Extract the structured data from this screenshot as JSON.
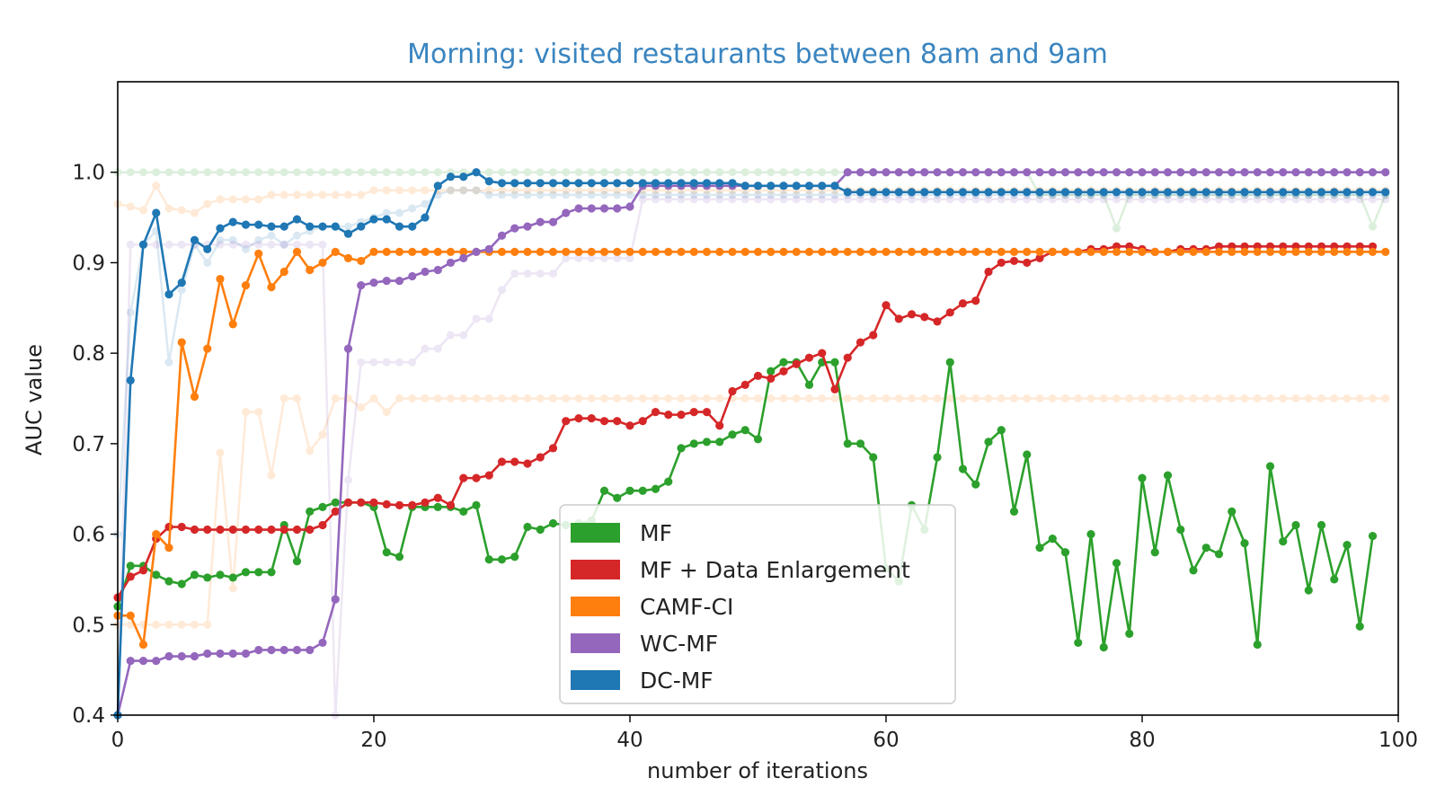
{
  "chart_data": {
    "type": "line",
    "title": "Morning: visited restaurants between 8am and 9am",
    "title_color": "#3a85c0",
    "xlabel": "number of iterations",
    "ylabel": "AUC value",
    "xlim": [
      0,
      100
    ],
    "ylim": [
      0.4,
      1.1
    ],
    "xticks": [
      0,
      20,
      40,
      60,
      80,
      100
    ],
    "xtick_labels": [
      "0",
      "20",
      "40",
      "60",
      "80",
      "100"
    ],
    "yticks": [
      0.4,
      0.5,
      0.6,
      0.7,
      0.8,
      0.9,
      1.0
    ],
    "ytick_labels": [
      "0.4",
      "0.5",
      "0.6",
      "0.7",
      "0.8",
      "0.9",
      "1.0"
    ],
    "legend_position": "lower-center",
    "series": [
      {
        "name": "MF",
        "color": "#2ca02c",
        "values": [
          0.52,
          0.565,
          0.565,
          0.555,
          0.548,
          0.545,
          0.555,
          0.552,
          0.555,
          0.552,
          0.558,
          0.558,
          0.558,
          0.61,
          0.57,
          0.625,
          0.63,
          0.635,
          0.635,
          0.635,
          0.63,
          0.58,
          0.575,
          0.63,
          0.63,
          0.63,
          0.63,
          0.625,
          0.632,
          0.572,
          0.572,
          0.575,
          0.608,
          0.605,
          0.612,
          0.61,
          0.612,
          0.615,
          0.648,
          0.64,
          0.648,
          0.648,
          0.65,
          0.658,
          0.695,
          0.7,
          0.702,
          0.702,
          0.71,
          0.715,
          0.705,
          0.78,
          0.79,
          0.79,
          0.765,
          0.79,
          0.79,
          0.7,
          0.7,
          0.685,
          0.562,
          0.548,
          0.632,
          0.605,
          0.685,
          0.79,
          0.672,
          0.655,
          0.702,
          0.715,
          0.625,
          0.688,
          0.585,
          0.595,
          0.58,
          0.48,
          0.6,
          0.475,
          0.568,
          0.49,
          0.662,
          0.58,
          0.665,
          0.605,
          0.56,
          0.585,
          0.578,
          0.625,
          0.59,
          0.478,
          0.675,
          0.592,
          0.61,
          0.538,
          0.61,
          0.55,
          0.588,
          0.498,
          0.598
        ]
      },
      {
        "name": "MF + Data Enlargement",
        "color": "#d62728",
        "values": [
          0.53,
          0.553,
          0.56,
          0.595,
          0.608,
          0.608,
          0.605,
          0.605,
          0.605,
          0.605,
          0.605,
          0.605,
          0.605,
          0.605,
          0.605,
          0.605,
          0.61,
          0.625,
          0.635,
          0.635,
          0.635,
          0.633,
          0.632,
          0.632,
          0.635,
          0.64,
          0.632,
          0.662,
          0.662,
          0.665,
          0.68,
          0.68,
          0.678,
          0.685,
          0.695,
          0.725,
          0.728,
          0.728,
          0.725,
          0.725,
          0.72,
          0.725,
          0.735,
          0.732,
          0.732,
          0.735,
          0.735,
          0.72,
          0.758,
          0.765,
          0.775,
          0.772,
          0.78,
          0.788,
          0.795,
          0.8,
          0.76,
          0.795,
          0.812,
          0.82,
          0.853,
          0.838,
          0.843,
          0.84,
          0.835,
          0.845,
          0.855,
          0.858,
          0.89,
          0.9,
          0.902,
          0.9,
          0.905,
          0.912,
          0.912,
          0.912,
          0.915,
          0.915,
          0.918,
          0.918,
          0.915,
          0.912,
          0.912,
          0.915,
          0.915,
          0.915,
          0.918,
          0.918,
          0.918,
          0.918,
          0.918,
          0.918,
          0.918,
          0.918,
          0.918,
          0.918,
          0.918,
          0.918,
          0.918
        ]
      },
      {
        "name": "CAMF-CI",
        "color": "#ff7f0e",
        "values": [
          0.51,
          0.51,
          0.478,
          0.6,
          0.585,
          0.812,
          0.752,
          0.805,
          0.882,
          0.832,
          0.875,
          0.91,
          0.873,
          0.89,
          0.912,
          0.892,
          0.9,
          0.912,
          0.905,
          0.902,
          0.912,
          0.912,
          0.912,
          0.912,
          0.912,
          0.912,
          0.912,
          0.912,
          0.912,
          0.912,
          0.912,
          0.912,
          0.912,
          0.912,
          0.912,
          0.912,
          0.912,
          0.912,
          0.912,
          0.912,
          0.912,
          0.912,
          0.912,
          0.912,
          0.912,
          0.912,
          0.912,
          0.912,
          0.912,
          0.912,
          0.912,
          0.912,
          0.912,
          0.912,
          0.912,
          0.912,
          0.912,
          0.912,
          0.912,
          0.912,
          0.912,
          0.912,
          0.912,
          0.912,
          0.912,
          0.912,
          0.912,
          0.912,
          0.912,
          0.912,
          0.912,
          0.912,
          0.912,
          0.912,
          0.912,
          0.912,
          0.912,
          0.912,
          0.912,
          0.912,
          0.912,
          0.912,
          0.912,
          0.912,
          0.912,
          0.912,
          0.912,
          0.912,
          0.912,
          0.912,
          0.912,
          0.912,
          0.912,
          0.912,
          0.912,
          0.912,
          0.912,
          0.912,
          0.912,
          0.912
        ]
      },
      {
        "name": "WC-MF",
        "color": "#9467bd",
        "values": [
          0.4,
          0.46,
          0.46,
          0.46,
          0.465,
          0.465,
          0.465,
          0.468,
          0.468,
          0.468,
          0.468,
          0.472,
          0.472,
          0.472,
          0.472,
          0.472,
          0.48,
          0.528,
          0.805,
          0.875,
          0.878,
          0.88,
          0.88,
          0.885,
          0.89,
          0.892,
          0.9,
          0.905,
          0.912,
          0.915,
          0.93,
          0.938,
          0.94,
          0.945,
          0.945,
          0.955,
          0.96,
          0.96,
          0.96,
          0.96,
          0.962,
          0.985,
          0.985,
          0.985,
          0.985,
          0.985,
          0.985,
          0.985,
          0.985,
          0.985,
          0.985,
          0.985,
          0.985,
          0.985,
          0.985,
          0.985,
          0.985,
          1.0,
          1.0,
          1.0,
          1.0,
          1.0,
          1.0,
          1.0,
          1.0,
          1.0,
          1.0,
          1.0,
          1.0,
          1.0,
          1.0,
          1.0,
          1.0,
          1.0,
          1.0,
          1.0,
          1.0,
          1.0,
          1.0,
          1.0,
          1.0,
          1.0,
          1.0,
          1.0,
          1.0,
          1.0,
          1.0,
          1.0,
          1.0,
          1.0,
          1.0,
          1.0,
          1.0,
          1.0,
          1.0,
          1.0,
          1.0,
          1.0,
          1.0,
          1.0
        ]
      },
      {
        "name": "DC-MF",
        "color": "#1f77b4",
        "values": [
          0.4,
          0.77,
          0.92,
          0.955,
          0.865,
          0.878,
          0.925,
          0.915,
          0.938,
          0.945,
          0.942,
          0.942,
          0.94,
          0.94,
          0.948,
          0.94,
          0.94,
          0.94,
          0.932,
          0.94,
          0.948,
          0.948,
          0.94,
          0.94,
          0.95,
          0.985,
          0.995,
          0.995,
          1.0,
          0.99,
          0.988,
          0.988,
          0.988,
          0.988,
          0.988,
          0.988,
          0.988,
          0.988,
          0.988,
          0.988,
          0.988,
          0.988,
          0.988,
          0.988,
          0.988,
          0.988,
          0.988,
          0.988,
          0.988,
          0.985,
          0.985,
          0.985,
          0.985,
          0.985,
          0.985,
          0.985,
          0.985,
          0.978,
          0.978,
          0.978,
          0.978,
          0.978,
          0.978,
          0.978,
          0.978,
          0.978,
          0.978,
          0.978,
          0.978,
          0.978,
          0.978,
          0.978,
          0.978,
          0.978,
          0.978,
          0.978,
          0.978,
          0.978,
          0.978,
          0.978,
          0.978,
          0.978,
          0.978,
          0.978,
          0.978,
          0.978,
          0.978,
          0.978,
          0.978,
          0.978,
          0.978,
          0.978,
          0.978,
          0.978,
          0.978,
          0.978,
          0.978,
          0.978,
          0.978,
          0.978
        ]
      }
    ],
    "background_series": [
      {
        "name": "MF-faint",
        "color": "#2ca02c",
        "values": [
          1.0,
          1.0,
          1.0,
          1.0,
          1.0,
          1.0,
          1.0,
          1.0,
          1.0,
          1.0,
          1.0,
          1.0,
          1.0,
          1.0,
          1.0,
          1.0,
          1.0,
          1.0,
          1.0,
          1.0,
          1.0,
          1.0,
          1.0,
          1.0,
          1.0,
          1.0,
          1.0,
          1.0,
          1.0,
          1.0,
          1.0,
          1.0,
          1.0,
          1.0,
          1.0,
          1.0,
          1.0,
          1.0,
          1.0,
          1.0,
          1.0,
          1.0,
          1.0,
          1.0,
          1.0,
          1.0,
          1.0,
          1.0,
          1.0,
          1.0,
          1.0,
          1.0,
          1.0,
          1.0,
          1.0,
          1.0,
          1.0,
          1.0,
          1.0,
          1.0,
          1.0,
          1.0,
          1.0,
          1.0,
          1.0,
          1.0,
          1.0,
          1.0,
          1.0,
          1.0,
          1.0,
          1.0,
          0.975,
          0.975,
          0.975,
          0.975,
          0.975,
          0.975,
          0.938,
          0.975,
          0.975,
          0.975,
          0.975,
          0.975,
          0.975,
          0.975,
          0.975,
          0.975,
          0.975,
          0.975,
          0.975,
          0.975,
          0.975,
          0.975,
          0.975,
          0.975,
          0.975,
          0.975,
          0.94,
          0.975
        ]
      },
      {
        "name": "CAMF-CI-faint-top",
        "color": "#ff7f0e",
        "values": [
          0.965,
          0.962,
          0.958,
          0.985,
          0.96,
          0.958,
          0.955,
          0.965,
          0.97,
          0.97,
          0.97,
          0.97,
          0.975,
          0.975,
          0.975,
          0.975,
          0.975,
          0.975,
          0.975,
          0.975,
          0.98,
          0.98,
          0.98,
          0.98,
          0.98,
          0.98,
          0.98,
          0.98,
          0.98,
          0.98,
          0.98,
          0.98,
          0.98,
          0.98,
          0.98,
          0.98,
          0.98,
          0.98,
          0.98,
          0.98,
          0.98,
          0.98,
          0.98,
          0.98,
          0.98,
          0.98,
          0.98,
          0.98,
          0.98,
          0.98,
          0.98,
          0.98,
          0.98,
          0.98,
          0.98,
          0.98,
          0.98,
          0.98,
          0.98,
          0.98,
          0.98,
          0.98,
          0.98,
          0.98,
          0.98,
          0.98,
          0.98,
          0.98,
          0.98,
          0.98,
          0.98,
          0.98,
          0.98,
          0.98,
          0.98,
          0.98,
          0.98,
          0.98,
          0.98,
          0.98,
          0.98,
          0.98,
          0.98,
          0.98,
          0.98,
          0.98,
          0.98,
          0.98,
          0.98,
          0.98,
          0.98,
          0.98,
          0.98,
          0.98,
          0.98,
          0.98,
          0.98,
          0.98,
          0.98,
          0.98
        ]
      },
      {
        "name": "CAMF-CI-faint-mid",
        "color": "#ff7f0e",
        "values": [
          0.5,
          0.5,
          0.5,
          0.5,
          0.5,
          0.5,
          0.5,
          0.5,
          0.69,
          0.54,
          0.735,
          0.735,
          0.665,
          0.75,
          0.75,
          0.692,
          0.71,
          0.75,
          0.75,
          0.74,
          0.75,
          0.735,
          0.75,
          0.75,
          0.75,
          0.75,
          0.75,
          0.75,
          0.75,
          0.75,
          0.75,
          0.75,
          0.75,
          0.75,
          0.75,
          0.75,
          0.75,
          0.75,
          0.75,
          0.75,
          0.75,
          0.75,
          0.75,
          0.75,
          0.75,
          0.75,
          0.75,
          0.75,
          0.75,
          0.75,
          0.75,
          0.75,
          0.75,
          0.75,
          0.75,
          0.75,
          0.75,
          0.75,
          0.75,
          0.75,
          0.75,
          0.75,
          0.75,
          0.75,
          0.75,
          0.75,
          0.75,
          0.75,
          0.75,
          0.75,
          0.75,
          0.75,
          0.75,
          0.75,
          0.75,
          0.75,
          0.75,
          0.75,
          0.75,
          0.75,
          0.75,
          0.75,
          0.75,
          0.75,
          0.75,
          0.75,
          0.75,
          0.75,
          0.75,
          0.75,
          0.75,
          0.75,
          0.75,
          0.75,
          0.75,
          0.75,
          0.75,
          0.75,
          0.75,
          0.75
        ]
      },
      {
        "name": "DC-MF-faint",
        "color": "#1f77b4",
        "values": [
          0.6,
          0.845,
          0.92,
          0.935,
          0.79,
          0.87,
          0.92,
          0.9,
          0.925,
          0.925,
          0.915,
          0.925,
          0.93,
          0.92,
          0.93,
          0.935,
          0.94,
          0.94,
          0.94,
          0.945,
          0.95,
          0.955,
          0.955,
          0.96,
          0.965,
          0.975,
          0.98,
          0.98,
          0.98,
          0.975,
          0.975,
          0.975,
          0.975,
          0.975,
          0.975,
          0.975,
          0.975,
          0.975,
          0.975,
          0.975,
          0.975,
          0.975,
          0.975,
          0.975,
          0.975,
          0.975,
          0.975,
          0.975,
          0.975,
          0.975,
          0.975,
          0.975,
          0.975,
          0.975,
          0.975,
          0.975,
          0.975,
          0.975,
          0.975,
          0.975,
          0.975,
          0.975,
          0.975,
          0.975,
          0.975,
          0.975,
          0.975,
          0.975,
          0.975,
          0.975,
          0.975,
          0.975,
          0.975,
          0.975,
          0.975,
          0.975,
          0.975,
          0.975,
          0.975,
          0.975,
          0.975,
          0.975,
          0.975,
          0.975,
          0.975,
          0.975,
          0.975,
          0.975,
          0.975,
          0.975,
          0.975,
          0.975,
          0.975,
          0.975,
          0.975,
          0.975,
          0.975,
          0.975,
          0.975,
          0.975
        ]
      },
      {
        "name": "WC-MF-faint",
        "color": "#9467bd",
        "values": [
          0.4,
          0.92,
          0.92,
          0.92,
          0.92,
          0.92,
          0.92,
          0.92,
          0.92,
          0.92,
          0.92,
          0.92,
          0.92,
          0.92,
          0.92,
          0.92,
          0.92,
          0.4,
          0.66,
          0.79,
          0.79,
          0.79,
          0.79,
          0.79,
          0.805,
          0.805,
          0.82,
          0.82,
          0.838,
          0.838,
          0.87,
          0.888,
          0.888,
          0.888,
          0.888,
          0.905,
          0.905,
          0.905,
          0.905,
          0.905,
          0.905,
          0.97,
          0.97,
          0.97,
          0.97,
          0.97,
          0.97,
          0.97,
          0.97,
          0.97,
          0.97,
          0.97,
          0.97,
          0.97,
          0.97,
          0.97,
          0.97,
          0.97,
          0.97,
          0.97,
          0.97,
          0.97,
          0.97,
          0.97,
          0.97,
          0.97,
          0.97,
          0.97,
          0.97,
          0.97,
          0.97,
          0.97,
          0.97,
          0.97,
          0.97,
          0.97,
          0.97,
          0.97,
          0.97,
          0.97,
          0.97,
          0.97,
          0.97,
          0.97,
          0.97,
          0.97,
          0.97,
          0.97,
          0.97,
          0.97,
          0.97,
          0.97,
          0.97,
          0.97,
          0.97,
          0.97,
          0.97,
          0.97,
          0.97,
          0.97
        ]
      }
    ]
  }
}
